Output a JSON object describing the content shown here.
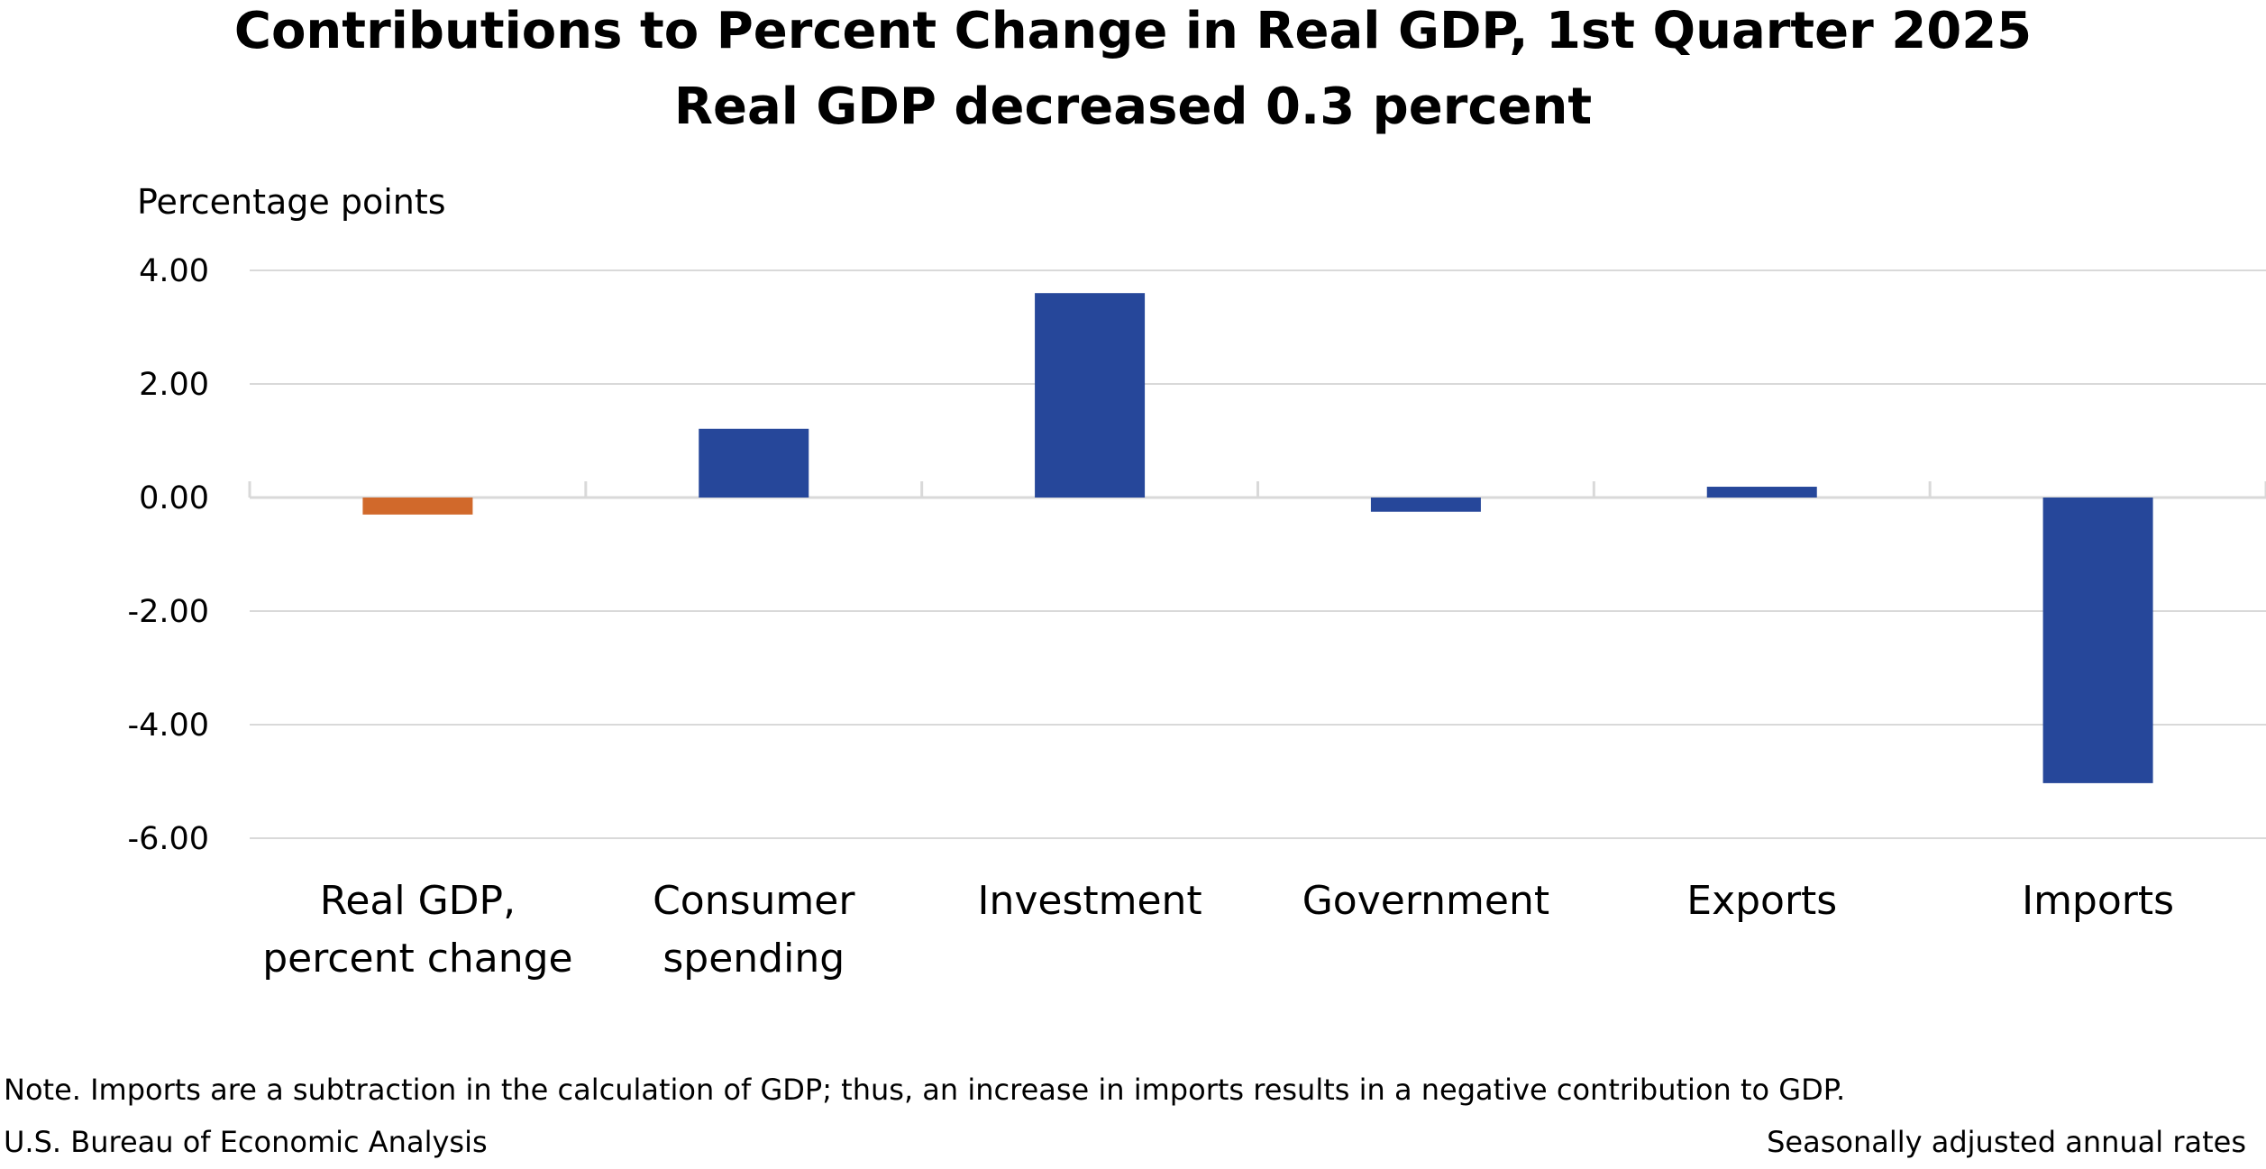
{
  "chart_data": {
    "type": "bar",
    "title": "Contributions to Percent Change in Real GDP, 1st Quarter 2025",
    "subtitle": "Real GDP decreased 0.3 percent",
    "ylabel": "Percentage points",
    "xlabel": "",
    "ylim": [
      -6.0,
      4.0
    ],
    "yticks": [
      "4.00",
      "2.00",
      "0.00",
      "-2.00",
      "-4.00",
      "-6.00"
    ],
    "ytick_values": [
      4,
      2,
      0,
      -2,
      -4,
      -6
    ],
    "grid": true,
    "categories": [
      [
        "Real GDP,",
        "percent change"
      ],
      [
        "Consumer",
        "spending"
      ],
      [
        "Investment"
      ],
      [
        "Government"
      ],
      [
        "Exports"
      ],
      [
        "Imports"
      ]
    ],
    "values": [
      -0.3,
      1.21,
      3.6,
      -0.25,
      0.19,
      -5.03
    ],
    "bar_colors": [
      "#D1692B",
      "#26479A",
      "#26479A",
      "#26479A",
      "#26479A",
      "#26479A"
    ]
  },
  "footer": {
    "note": "Note. Imports are a subtraction in the calculation of GDP; thus, an increase in imports results in a negative contribution to GDP.",
    "source": "U.S. Bureau of Economic Analysis",
    "rates": "Seasonally adjusted annual rates"
  }
}
